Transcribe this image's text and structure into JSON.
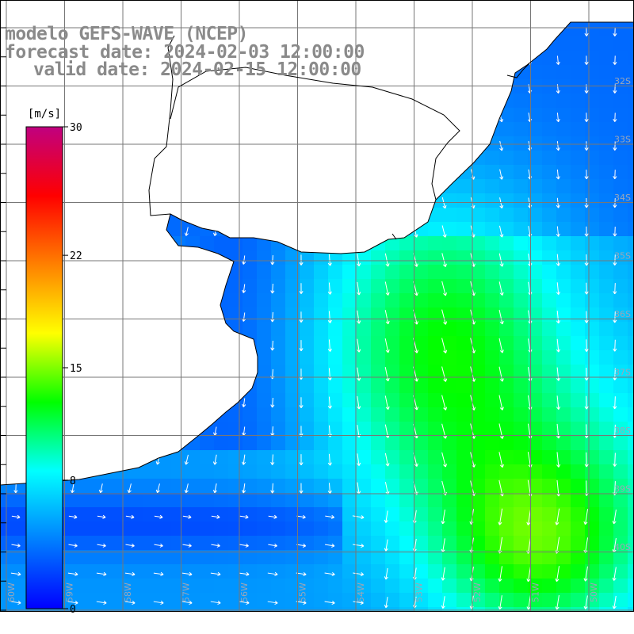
{
  "header": {
    "title": "modelo GEFS-WAVE (NCEP)",
    "forecast_date": "forecast date: 2024-02-03 12:00:00",
    "valid_date": "valid date: 2024-02-15 12:00:00"
  },
  "colorbar": {
    "unit": "[m/s]",
    "min": 0,
    "max": 30,
    "ticks": [
      "30",
      "22",
      "15",
      "8",
      "0"
    ],
    "tick_values": [
      30,
      22,
      15,
      8,
      0
    ],
    "colors": [
      "#0000ff",
      "#0080ff",
      "#00ffff",
      "#00ff00",
      "#ffff00",
      "#ff8000",
      "#ff0000",
      "#c00080"
    ]
  },
  "map": {
    "grid_line_color": "#777777",
    "coast_color": "#000000",
    "land_color": "#ffffff",
    "lat_labels": [
      "32S",
      "33S",
      "34S",
      "35S",
      "36S",
      "37S",
      "38S",
      "39S",
      "40S"
    ],
    "lon_labels": [
      "60W",
      "59W",
      "58W",
      "57W",
      "56W",
      "55W",
      "54W",
      "53W",
      "52W",
      "51W",
      "50W"
    ]
  }
}
